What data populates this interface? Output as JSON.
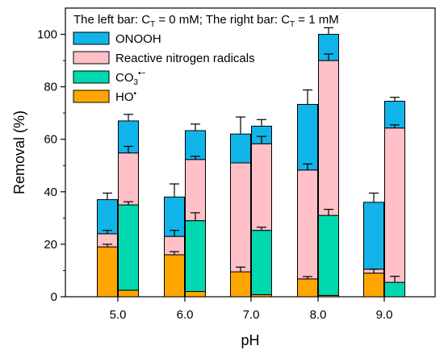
{
  "chart_data": {
    "type": "bar",
    "stacked": true,
    "grouped": true,
    "title_parts": {
      "left_prefix": "The left bar: C",
      "left_sub": "T",
      "left_suffix": " = 0 mM; The right bar: C",
      "right_sub": "T",
      "right_suffix": " = 1 mM"
    },
    "xlabel": "pH",
    "ylabel": "Removal (%)",
    "ylim": [
      0,
      110
    ],
    "yticks": [
      "0",
      "20",
      "40",
      "60",
      "80",
      "100"
    ],
    "categories": [
      "5.0",
      "6.0",
      "7.0",
      "8.0",
      "9.0"
    ],
    "groups": [
      "C_T = 0 mM",
      "C_T = 1 mM"
    ],
    "series": [
      {
        "key": "ho",
        "label_main": "HO",
        "label_sup": "•",
        "color": "#FFA500",
        "values": {
          "left": [
            19,
            16,
            9.5,
            6.8,
            9
          ],
          "right": [
            2.5,
            2,
            0.8,
            0.5,
            0
          ]
        },
        "errors": {
          "left": [
            1,
            1.2,
            1.8,
            0.9,
            1.5
          ],
          "right": [
            0,
            0,
            0,
            0,
            0
          ]
        }
      },
      {
        "key": "co3",
        "label_main": "CO",
        "label_sub": "3",
        "label_sup": "•−",
        "color": "#00D8B0",
        "values": {
          "left": [
            0,
            0,
            0,
            0,
            0
          ],
          "right": [
            32.5,
            27,
            24.5,
            30.5,
            5.5
          ]
        },
        "errors": {
          "left": [
            0,
            0,
            0,
            0,
            0
          ],
          "right": [
            1.2,
            3,
            1.2,
            2.3,
            2.3
          ]
        }
      },
      {
        "key": "rnr",
        "label": "Reactive nitrogen radicals",
        "color": "#FFC0C8",
        "values": {
          "left": [
            5,
            7,
            41.5,
            41.5,
            1.5
          ],
          "right": [
            19.8,
            23.3,
            33,
            59,
            58.8
          ]
        },
        "errors": {
          "left": [
            1.3,
            2.3,
            0,
            2.3,
            0
          ],
          "right": [
            2.5,
            1.2,
            2.8,
            2.5,
            1.2
          ]
        }
      },
      {
        "key": "onooh",
        "label": "ONOOH",
        "color": "#11B4E8",
        "values": {
          "left": [
            13,
            15,
            11,
            25,
            25.5
          ],
          "right": [
            12.2,
            11,
            6.7,
            10,
            10.2
          ]
        },
        "errors": {
          "left": [
            2.5,
            5,
            6.5,
            5.5,
            3.5
          ],
          "right": [
            2.5,
            2.5,
            2.5,
            2.5,
            1.5
          ]
        }
      }
    ],
    "legend_order": [
      "onooh",
      "rnr",
      "co3",
      "ho"
    ],
    "legend_placement": "top-left"
  }
}
